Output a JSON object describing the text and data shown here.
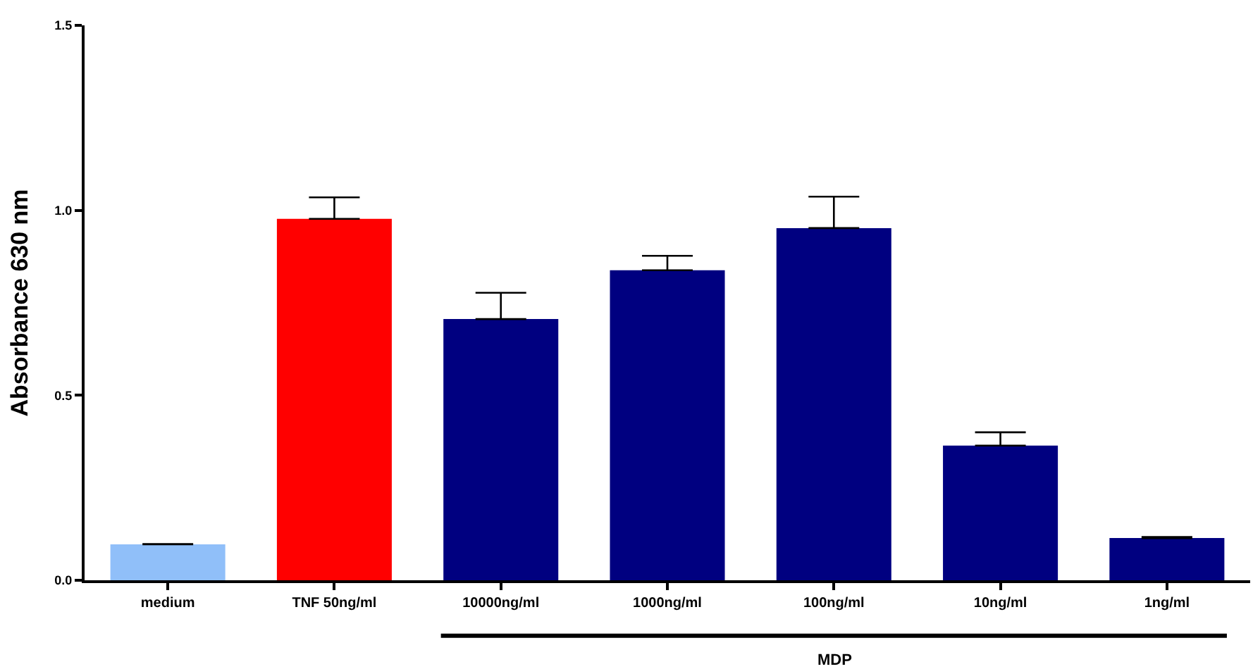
{
  "chart_data": {
    "type": "bar",
    "ylabel": "Absorbance 630 nm",
    "categories": [
      "medium",
      "TNF 50ng/ml",
      "10000ng/ml",
      "1000ng/ml",
      "100ng/ml",
      "10ng/ml",
      "1ng/ml"
    ],
    "values": [
      0.097,
      0.977,
      0.706,
      0.838,
      0.952,
      0.364,
      0.114
    ],
    "colors": [
      "#90bff9",
      "#ff0000",
      "#000080",
      "#000080",
      "#000080",
      "#000080",
      "#000080"
    ],
    "errors": [
      [
        0.097,
        0.098
      ],
      [
        0.977,
        1.035
      ],
      [
        0.706,
        0.777
      ],
      [
        0.838,
        0.877
      ],
      [
        0.952,
        1.037
      ],
      [
        0.364,
        0.4
      ],
      [
        0.114,
        0.117
      ]
    ],
    "ylim": [
      0,
      1.5
    ],
    "yticks": [
      {
        "value": 0,
        "label": "0.0"
      },
      0.5,
      {
        "value": 1,
        "label": "1.0"
      },
      1.5
    ],
    "grid": false,
    "annotations": [
      "MDP"
    ]
  }
}
